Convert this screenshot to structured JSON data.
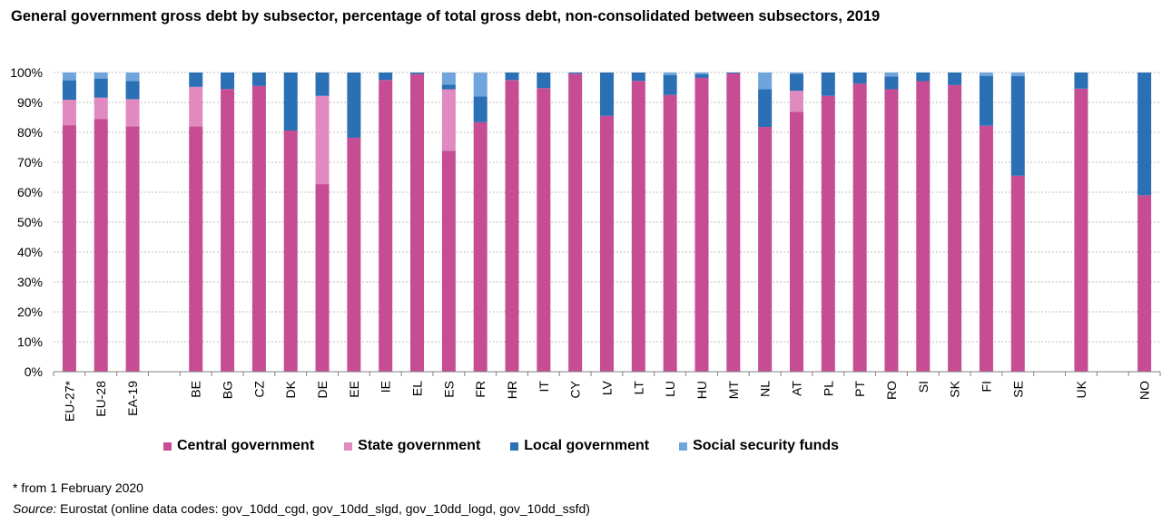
{
  "title": "General government gross debt by subsector, percentage of total gross debt, non-consolidated between subsectors, 2019",
  "footnote": "* from 1 February 2020",
  "source": {
    "label": "Source:",
    "text": " Eurostat (online data codes: gov_10dd_cgd, gov_10dd_slgd, gov_10dd_logd, gov_10dd_ssfd)"
  },
  "chart_data": {
    "type": "bar",
    "stacked": true,
    "ylim": [
      0,
      100
    ],
    "yticks": [
      "0%",
      "10%",
      "20%",
      "30%",
      "40%",
      "50%",
      "60%",
      "70%",
      "80%",
      "90%",
      "100%"
    ],
    "grid": "horizontal dashed",
    "legend_position": "bottom",
    "categories": [
      "EU-27*",
      "EU-28",
      "EA-19",
      "",
      "BE",
      "BG",
      "CZ",
      "DK",
      "DE",
      "EE",
      "IE",
      "EL",
      "ES",
      "FR",
      "HR",
      "IT",
      "CY",
      "LV",
      "LT",
      "LU",
      "HU",
      "MT",
      "NL",
      "AT",
      "PL",
      "PT",
      "RO",
      "SI",
      "SK",
      "FI",
      "SE",
      "",
      "UK",
      "",
      "NO"
    ],
    "series": [
      {
        "name": "Central government",
        "color": "#c64c94",
        "values": [
          82.4,
          84.5,
          82.0,
          null,
          82.0,
          94.5,
          95.5,
          80.6,
          62.7,
          78.2,
          97.5,
          99.5,
          73.8,
          83.4,
          97.5,
          94.8,
          99.6,
          85.5,
          97.2,
          92.5,
          98.2,
          99.7,
          81.8,
          86.9,
          92.2,
          96.3,
          94.4,
          97.1,
          95.8,
          82.2,
          65.5,
          null,
          94.6,
          null,
          59.0
        ]
      },
      {
        "name": "State government",
        "color": "#e08ac0",
        "values": [
          8.5,
          7.1,
          9.1,
          null,
          13.2,
          0,
          0,
          0,
          29.5,
          0,
          0,
          0,
          20.6,
          0,
          0,
          0,
          0,
          0,
          0,
          0,
          0,
          0,
          0,
          7.0,
          0,
          0,
          0,
          0,
          0,
          0,
          0,
          null,
          0,
          null,
          0
        ]
      },
      {
        "name": "Local government",
        "color": "#2b6fb5",
        "values": [
          6.5,
          6.4,
          6.1,
          null,
          4.8,
          5.5,
          4.5,
          19.4,
          7.8,
          21.8,
          2.5,
          0.5,
          1.6,
          8.6,
          2.5,
          5.2,
          0.4,
          14.5,
          2.8,
          6.7,
          1.2,
          0.3,
          12.6,
          5.7,
          7.8,
          3.7,
          4.3,
          2.9,
          4.2,
          16.7,
          33.3,
          null,
          5.4,
          null,
          41.0
        ]
      },
      {
        "name": "Social security funds",
        "color": "#6fa5dc",
        "values": [
          2.6,
          2.0,
          2.8,
          null,
          0,
          0,
          0,
          0,
          0,
          0,
          0,
          0,
          4.0,
          8.0,
          0,
          0,
          0,
          0,
          0,
          0.8,
          0.6,
          0,
          5.6,
          0.4,
          0,
          0,
          1.3,
          0,
          0,
          1.1,
          1.2,
          null,
          0,
          null,
          0
        ]
      }
    ]
  }
}
